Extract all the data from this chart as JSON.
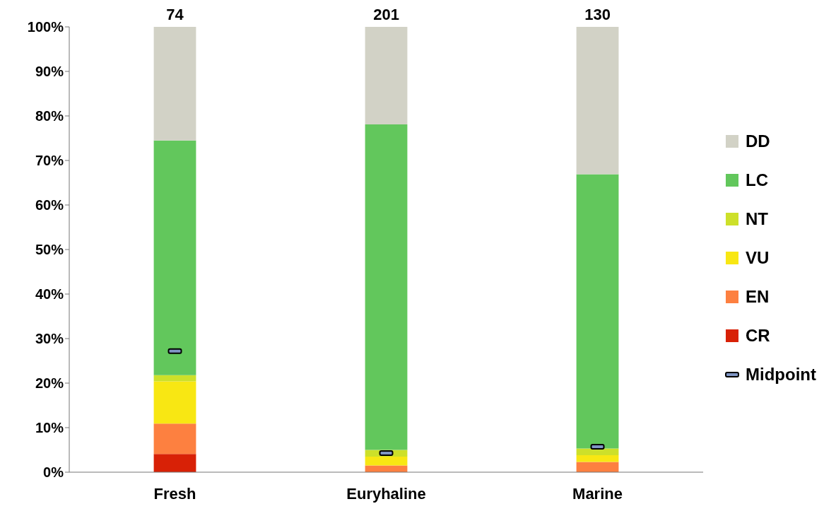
{
  "chart_data": {
    "type": "bar",
    "stacked": true,
    "categories": [
      "Fresh",
      "Euryhaline",
      "Marine"
    ],
    "series": [
      {
        "name": "CR",
        "color": "#d82106",
        "values": [
          4.1,
          0,
          0
        ]
      },
      {
        "name": "EN",
        "color": "#fd8040",
        "values": [
          6.8,
          1.5,
          2.3
        ]
      },
      {
        "name": "VU",
        "color": "#f8e713",
        "values": [
          9.5,
          2.0,
          1.5
        ]
      },
      {
        "name": "NT",
        "color": "#cde02a",
        "values": [
          1.4,
          1.5,
          1.5
        ]
      },
      {
        "name": "LC",
        "color": "#62c75c",
        "values": [
          52.7,
          73.1,
          61.6
        ]
      },
      {
        "name": "DD",
        "color": "#d2d2c6",
        "values": [
          25.5,
          21.9,
          33.1
        ]
      },
      {
        "name": "Midpoint",
        "type": "scatter",
        "color": "#7f95c4",
        "values": [
          27.2,
          4.3,
          5.7
        ]
      }
    ],
    "annotations": [
      {
        "text": "74",
        "x": "Fresh",
        "y": 100
      },
      {
        "text": "201",
        "x": "Euryhaline",
        "y": 100
      },
      {
        "text": "130",
        "x": "Marine",
        "y": 100
      }
    ],
    "ylim": [
      0,
      100
    ],
    "yticks": [
      {
        "value": 0,
        "label": "0%"
      },
      {
        "value": 10,
        "label": "10%"
      },
      {
        "value": 20,
        "label": "20%"
      },
      {
        "value": 30,
        "label": "30%"
      },
      {
        "value": 40,
        "label": "40%"
      },
      {
        "value": 50,
        "label": "50%"
      },
      {
        "value": 60,
        "label": "60%"
      },
      {
        "value": 70,
        "label": "70%"
      },
      {
        "value": 80,
        "label": "80%"
      },
      {
        "value": 90,
        "label": "90%"
      },
      {
        "value": 100,
        "label": "100%"
      }
    ],
    "grid": false,
    "legend": "right"
  }
}
